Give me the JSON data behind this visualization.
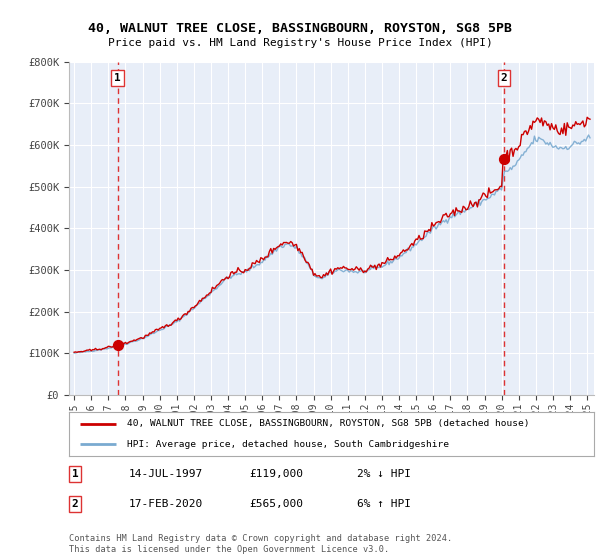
{
  "title_line1": "40, WALNUT TREE CLOSE, BASSINGBOURN, ROYSTON, SG8 5PB",
  "title_line2": "Price paid vs. HM Land Registry's House Price Index (HPI)",
  "bg_color": "#e8eef8",
  "grid_color": "#ffffff",
  "red_line_color": "#cc0000",
  "blue_line_color": "#7aaad0",
  "dashed_color": "#dd3333",
  "sale1_year": 1997.54,
  "sale1_price": 119000,
  "sale2_year": 2020.12,
  "sale2_price": 565000,
  "xmin": 1994.7,
  "xmax": 2025.4,
  "ymin": 0,
  "ymax": 800000,
  "yticks": [
    0,
    100000,
    200000,
    300000,
    400000,
    500000,
    600000,
    700000,
    800000
  ],
  "ytick_labels": [
    "£0",
    "£100K",
    "£200K",
    "£300K",
    "£400K",
    "£500K",
    "£600K",
    "£700K",
    "£800K"
  ],
  "xtick_years": [
    1995,
    1996,
    1997,
    1998,
    1999,
    2000,
    2001,
    2002,
    2003,
    2004,
    2005,
    2006,
    2007,
    2008,
    2009,
    2010,
    2011,
    2012,
    2013,
    2014,
    2015,
    2016,
    2017,
    2018,
    2019,
    2020,
    2021,
    2022,
    2023,
    2024,
    2025
  ],
  "legend_label1": "40, WALNUT TREE CLOSE, BASSINGBOURN, ROYSTON, SG8 5PB (detached house)",
  "legend_label2": "HPI: Average price, detached house, South Cambridgeshire",
  "annotation1_date": "14-JUL-1997",
  "annotation1_price": "£119,000",
  "annotation1_hpi": "2% ↓ HPI",
  "annotation2_date": "17-FEB-2020",
  "annotation2_price": "£565,000",
  "annotation2_hpi": "6% ↑ HPI",
  "footnote1": "Contains HM Land Registry data © Crown copyright and database right 2024.",
  "footnote2": "This data is licensed under the Open Government Licence v3.0."
}
